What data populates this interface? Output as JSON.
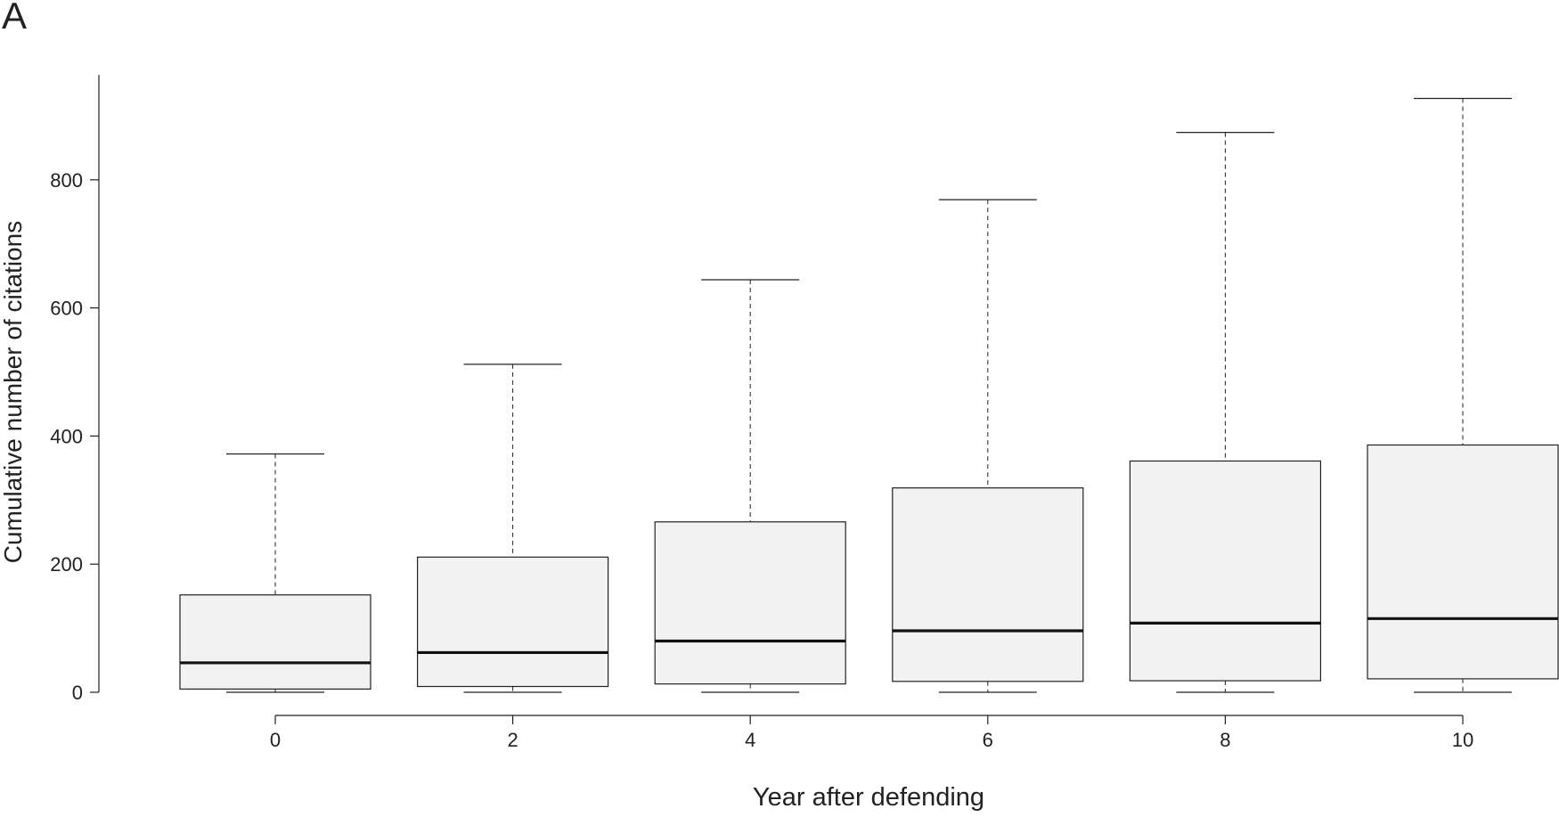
{
  "panel_label": "A",
  "chart_data": {
    "type": "boxplot",
    "xlabel": "Year after defending",
    "ylabel": "Cumulative number of citations",
    "ylim": [
      0,
      920
    ],
    "y_ticks": [
      "0",
      "200",
      "400",
      "600",
      "800"
    ],
    "y_tick_values": [
      0,
      200,
      400,
      600,
      800
    ],
    "categories": [
      "0",
      "2",
      "4",
      "6",
      "8",
      "10"
    ],
    "boxes": [
      {
        "x": "0",
        "whisker_low": 0,
        "q1": 5,
        "median": 46,
        "q3": 152,
        "whisker_high": 372
      },
      {
        "x": "2",
        "whisker_low": 0,
        "q1": 9,
        "median": 62,
        "q3": 211,
        "whisker_high": 512
      },
      {
        "x": "4",
        "whisker_low": 0,
        "q1": 13,
        "median": 80,
        "q3": 266,
        "whisker_high": 644
      },
      {
        "x": "6",
        "whisker_low": 0,
        "q1": 17,
        "median": 96,
        "q3": 319,
        "whisker_high": 769
      },
      {
        "x": "8",
        "whisker_low": 0,
        "q1": 18,
        "median": 108,
        "q3": 361,
        "whisker_high": 874
      },
      {
        "x": "10",
        "whisker_low": 0,
        "q1": 21,
        "median": 115,
        "q3": 386,
        "whisker_high": 927
      }
    ],
    "grid": false,
    "colors": {
      "box_fill": "#f2f2f2",
      "stroke": "#222222"
    }
  }
}
